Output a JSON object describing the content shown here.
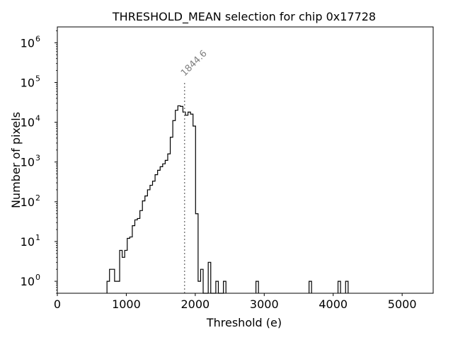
{
  "chart_data": {
    "type": "histogram",
    "title": "THRESHOLD_MEAN selection for chip 0x17728",
    "xlabel": "Threshold (e)",
    "ylabel": "Number of pixels",
    "xlim": [
      0,
      5450
    ],
    "ylim": [
      0.5,
      2500000
    ],
    "yscale": "log",
    "grid": false,
    "xticks": [
      0,
      1000,
      2000,
      3000,
      4000,
      5000
    ],
    "yticks": [
      {
        "value": 1,
        "base": "10",
        "exp": "0"
      },
      {
        "value": 10,
        "base": "10",
        "exp": "1"
      },
      {
        "value": 100,
        "base": "10",
        "exp": "2"
      },
      {
        "value": 1000,
        "base": "10",
        "exp": "3"
      },
      {
        "value": 10000,
        "base": "10",
        "exp": "4"
      },
      {
        "value": 100000,
        "base": "10",
        "exp": "5"
      },
      {
        "value": 1000000,
        "base": "10",
        "exp": "6"
      }
    ],
    "bin_width": 36.7,
    "bin_start": 720,
    "counts": [
      1,
      2,
      2,
      1,
      1,
      6,
      4,
      6,
      12,
      13,
      25,
      35,
      38,
      60,
      105,
      140,
      200,
      260,
      330,
      480,
      620,
      760,
      900,
      1100,
      1600,
      4200,
      11000,
      20000,
      26000,
      25000,
      18000,
      15000,
      18000,
      16000,
      8000,
      50,
      1,
      2,
      0,
      0,
      3,
      0,
      0,
      1,
      0,
      0,
      1
    ],
    "isolated_bins": [
      {
        "x": 2880,
        "count": 1
      },
      {
        "x": 3650,
        "count": 1
      },
      {
        "x": 4070,
        "count": 1
      },
      {
        "x": 4180,
        "count": 1
      }
    ],
    "marker": {
      "x": 1844.6,
      "label": "1844.6",
      "style": "dotted",
      "color": "#808080"
    },
    "line_color": "#000000"
  }
}
